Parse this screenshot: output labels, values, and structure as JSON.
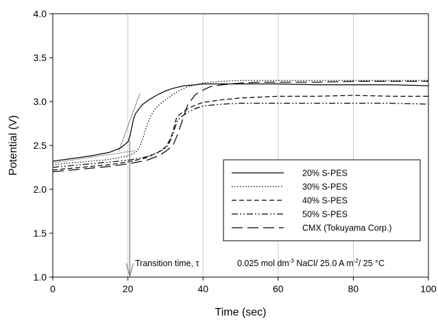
{
  "chart_data": {
    "type": "line",
    "title": "",
    "xlabel": "Time (sec)",
    "ylabel": "Potential (V)",
    "xlim": [
      0,
      100
    ],
    "ylim": [
      1.0,
      4.0
    ],
    "x_ticks": [
      "0",
      "20",
      "40",
      "60",
      "80",
      "100"
    ],
    "y_ticks": [
      "1.0",
      "1.5",
      "2.0",
      "2.5",
      "3.0",
      "3.5",
      "4.0"
    ],
    "grid": "vertical",
    "legend_position": "right-center",
    "series": [
      {
        "name": "20% S-PES",
        "dash": "solid",
        "x": [
          0,
          5,
          10,
          15,
          18,
          20,
          20.5,
          21,
          21.5,
          22,
          23,
          24,
          26,
          28,
          30,
          32,
          35,
          38,
          40,
          45,
          50,
          60,
          70,
          80,
          90,
          100
        ],
        "y": [
          2.32,
          2.35,
          2.38,
          2.42,
          2.47,
          2.54,
          2.6,
          2.7,
          2.8,
          2.86,
          2.92,
          2.97,
          3.03,
          3.08,
          3.12,
          3.15,
          3.18,
          3.19,
          3.2,
          3.2,
          3.2,
          3.2,
          3.19,
          3.19,
          3.19,
          3.18
        ]
      },
      {
        "name": "30% S-PES",
        "dash": "dotted",
        "x": [
          0,
          5,
          10,
          15,
          20,
          22,
          23,
          24,
          25,
          26,
          27,
          28,
          30,
          32,
          34,
          36,
          38,
          40,
          45,
          50,
          60,
          70,
          80,
          90,
          100
        ],
        "y": [
          2.28,
          2.3,
          2.32,
          2.34,
          2.38,
          2.42,
          2.47,
          2.58,
          2.72,
          2.83,
          2.9,
          2.95,
          3.02,
          3.08,
          3.13,
          3.17,
          3.19,
          3.21,
          3.23,
          3.24,
          3.24,
          3.24,
          3.24,
          3.24,
          3.24
        ]
      },
      {
        "name": "40% S-PES",
        "dash": "dashed",
        "x": [
          0,
          5,
          10,
          15,
          20,
          25,
          28,
          30,
          31,
          32,
          32.5,
          33,
          34,
          35,
          36,
          38,
          40,
          45,
          50,
          60,
          70,
          80,
          90,
          100
        ],
        "y": [
          2.22,
          2.24,
          2.26,
          2.28,
          2.31,
          2.36,
          2.42,
          2.48,
          2.55,
          2.65,
          2.75,
          2.82,
          2.86,
          2.89,
          2.92,
          2.96,
          2.99,
          3.02,
          3.04,
          3.06,
          3.06,
          3.07,
          3.06,
          3.06
        ]
      },
      {
        "name": "50% S-PES",
        "dash": "dash-dot-dot",
        "x": [
          0,
          5,
          10,
          15,
          20,
          25,
          28,
          30,
          31,
          32,
          33,
          34,
          35,
          36,
          38,
          40,
          45,
          50,
          60,
          70,
          80,
          90,
          100
        ],
        "y": [
          2.25,
          2.27,
          2.29,
          2.31,
          2.33,
          2.37,
          2.42,
          2.47,
          2.53,
          2.63,
          2.77,
          2.82,
          2.85,
          2.88,
          2.92,
          2.95,
          2.97,
          2.98,
          2.98,
          2.98,
          2.98,
          2.98,
          2.97
        ]
      },
      {
        "name": "CMX (Tokuyama Corp.)",
        "dash": "long-dash",
        "x": [
          0,
          5,
          10,
          15,
          20,
          25,
          28,
          30,
          32,
          33,
          34,
          35,
          36,
          38,
          40,
          42,
          45,
          50,
          55,
          60,
          70,
          80,
          90,
          100
        ],
        "y": [
          2.2,
          2.22,
          2.24,
          2.26,
          2.29,
          2.33,
          2.38,
          2.43,
          2.5,
          2.6,
          2.72,
          2.85,
          2.97,
          3.08,
          3.13,
          3.17,
          3.19,
          3.21,
          3.22,
          3.22,
          3.22,
          3.23,
          3.23,
          3.23
        ]
      }
    ],
    "annotations": {
      "transition_label": "Transition time, τ",
      "transition_x": 20.5,
      "conditions": {
        "part1": "0.025 mol dm",
        "sup1": "-3",
        "part2": " NaCl/ 25.0 A m",
        "sup2": "-2",
        "part3": "/ 25 °C"
      }
    }
  }
}
